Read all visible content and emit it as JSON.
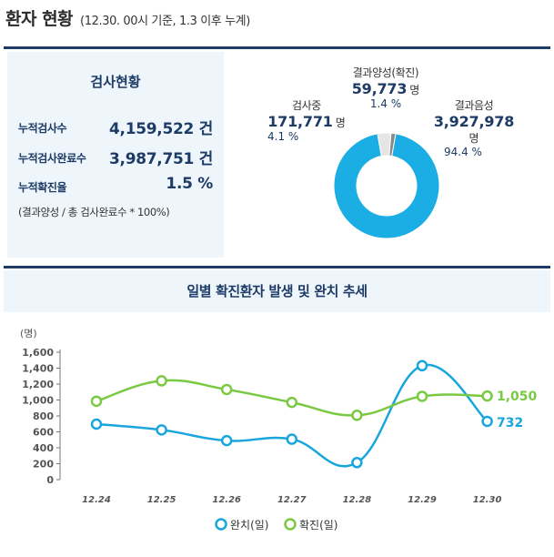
{
  "header": {
    "title": "환자 현황",
    "subtitle": "(12.30. 00시 기준, 1.3 이후 누계)"
  },
  "test_status": {
    "title": "검사현황",
    "rows": [
      {
        "label": "누적검사수",
        "value": "4,159,522 건"
      },
      {
        "label": "누적검사완료수",
        "value": "3,987,751 건"
      },
      {
        "label": "누적확진율",
        "value": "1.5 %"
      }
    ],
    "note": "(결과양성 / 총 검사완료수 * 100%)"
  },
  "donut": {
    "positive": {
      "label": "결과양성(확진)",
      "value": "59,773",
      "unit": "명",
      "pct": "1.4 %"
    },
    "testing": {
      "label": "검사중",
      "value": "171,771",
      "unit": "명",
      "pct": "4.1 %"
    },
    "negative": {
      "label": "결과음성",
      "value": "3,927,978",
      "unit": "명",
      "pct": "94.4 %"
    }
  },
  "trend": {
    "title": "일별 확진환자 발생 및 완치 추세",
    "unit_label": "(명)",
    "legend": {
      "released": "완치(일)",
      "confirmed": "확진(일)"
    },
    "end_labels": {
      "released": "732",
      "confirmed": "1,050"
    }
  },
  "colors": {
    "navy": "#1d3b66",
    "released": "#18a6dc",
    "confirmed": "#7ac943",
    "donut_negative": "#1aaee5",
    "donut_testing": "#e5e5e5",
    "donut_positive": "#8a8a8a"
  },
  "chart_data": [
    {
      "type": "pie",
      "categories": [
        "결과음성",
        "검사중",
        "결과양성(확진)"
      ],
      "values": [
        94.4,
        4.1,
        1.4
      ]
    },
    {
      "type": "line",
      "categories": [
        "12.24",
        "12.25",
        "12.26",
        "12.27",
        "12.28",
        "12.29",
        "12.30"
      ],
      "series": [
        {
          "name": "완치(일)",
          "values": [
            697,
            625,
            490,
            508,
            214,
            1431,
            732
          ]
        },
        {
          "name": "확진(일)",
          "values": [
            985,
            1241,
            1132,
            970,
            808,
            1046,
            1050
          ]
        }
      ],
      "ylabel": "(명)",
      "ylim": [
        0,
        1600
      ],
      "yticks": [
        "1,600",
        "1,400",
        "1,200",
        "1,000",
        "800",
        "600",
        "400",
        "200",
        "0"
      ],
      "grid": false,
      "legend": "bottom"
    }
  ]
}
